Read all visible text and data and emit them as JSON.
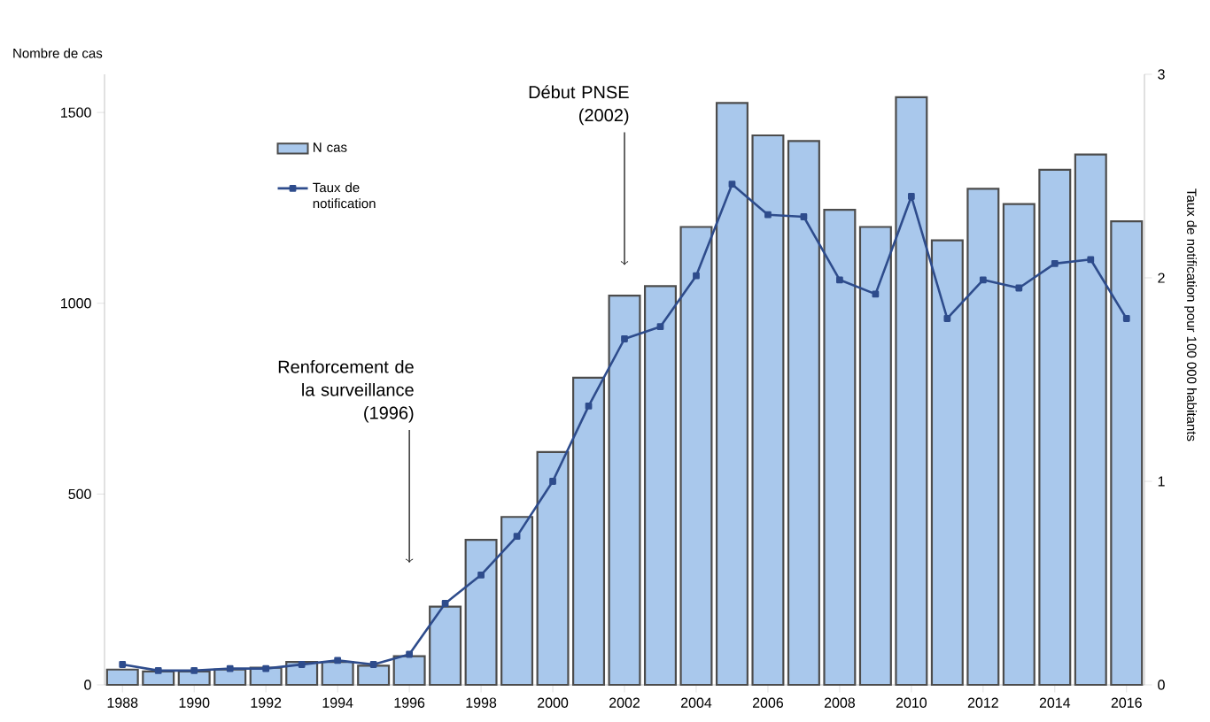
{
  "chart_data": {
    "type": "bar",
    "ylabel": "Nombre de cas",
    "y2label": "Taux de notification pour 100 000 habitants",
    "x": [
      1988,
      1989,
      1990,
      1991,
      1992,
      1993,
      1994,
      1995,
      1996,
      1997,
      1998,
      1999,
      2000,
      2001,
      2002,
      2003,
      2004,
      2005,
      2006,
      2007,
      2008,
      2009,
      2010,
      2011,
      2012,
      2013,
      2014,
      2015,
      2016
    ],
    "series": [
      {
        "name": "N cas",
        "color": "#a9c8ec",
        "values": [
          40,
          35,
          35,
          40,
          45,
          60,
          60,
          50,
          75,
          205,
          380,
          440,
          610,
          805,
          1020,
          1045,
          1200,
          1525,
          1440,
          1425,
          1245,
          1200,
          1540,
          1165,
          1300,
          1260,
          1350,
          1390,
          1215
        ]
      },
      {
        "name": "Taux de notification",
        "type": "line",
        "axis": "y2",
        "color": "#2e4c8c",
        "marker": "square",
        "values": [
          0.1,
          0.07,
          0.07,
          0.08,
          0.08,
          0.1,
          0.12,
          0.1,
          0.15,
          0.4,
          0.54,
          0.73,
          1.0,
          1.37,
          1.7,
          1.76,
          2.01,
          2.46,
          2.31,
          2.3,
          1.99,
          1.92,
          2.4,
          1.8,
          1.99,
          1.95,
          2.07,
          2.09,
          1.8
        ]
      }
    ],
    "xlim": [
      1987.5,
      2016.5
    ],
    "xticks": [
      1988,
      1990,
      1992,
      1994,
      1996,
      1998,
      2000,
      2002,
      2004,
      2006,
      2008,
      2010,
      2012,
      2014,
      2016
    ],
    "ylim": [
      0,
      1600
    ],
    "yticks": [
      0,
      500,
      1000,
      1500
    ],
    "y2lim": [
      0,
      3
    ],
    "y2ticks": [
      0,
      1,
      2,
      3
    ],
    "grid": false,
    "legend": "top left",
    "annotations": [
      {
        "text": "Début PNSE (2002)",
        "x": 2002,
        "y": 1100
      },
      {
        "text": "Renforcement de la surveillance (1996)",
        "x": 1996,
        "y": 320
      }
    ]
  }
}
